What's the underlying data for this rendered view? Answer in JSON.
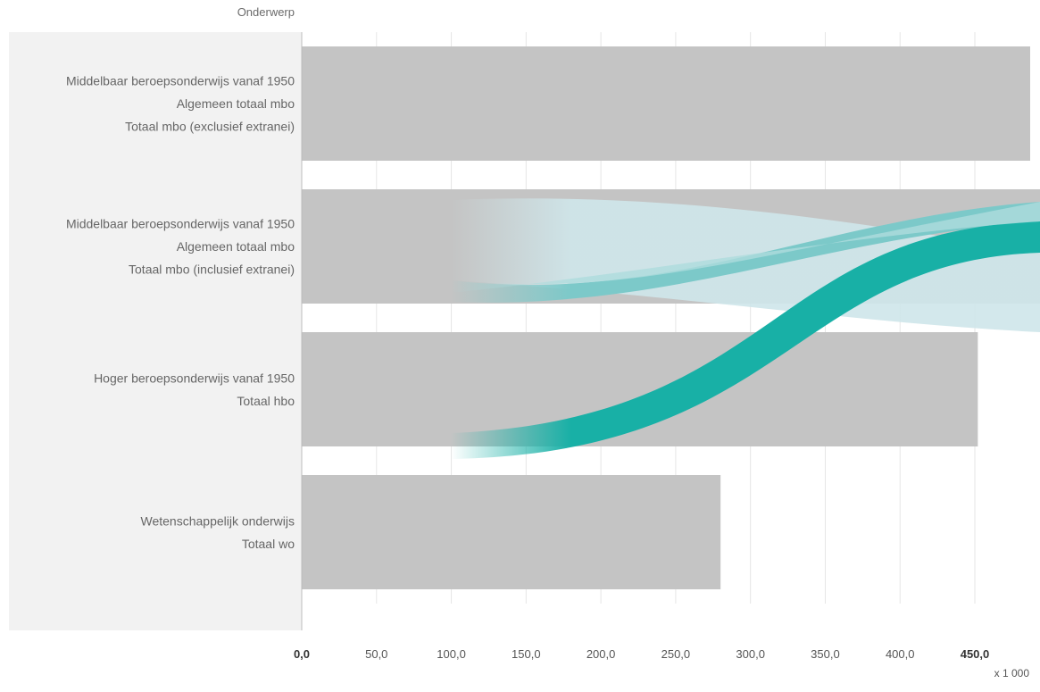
{
  "chart_data": {
    "type": "bar",
    "orientation": "horizontal",
    "category_header": "Onderwerp",
    "categories": [
      [
        "Middelbaar beroepsonderwijs vanaf 1950",
        "Algemeen totaal mbo",
        "Totaal mbo (exclusief extranei)"
      ],
      [
        "Middelbaar beroepsonderwijs vanaf 1950",
        "Algemeen totaal mbo",
        "Totaal mbo (inclusief extranei)"
      ],
      [
        "Hoger beroepsonderwijs vanaf 1950",
        "Totaal hbo"
      ],
      [
        "Wetenschappelijk onderwijs",
        "Totaal wo"
      ]
    ],
    "values": [
      487,
      496,
      452,
      280
    ],
    "xlim": [
      0,
      496
    ],
    "x_ticks": [
      "0,0",
      "50,0",
      "100,0",
      "150,0",
      "200,0",
      "250,0",
      "300,0",
      "350,0",
      "400,0",
      "450,0"
    ],
    "x_ticks_bold": [
      "0,0",
      "450,0"
    ],
    "x_unit": "x 1 000",
    "grid": true,
    "colors": {
      "bar": "#c4c4c4",
      "gridline": "#e6e6e6",
      "label_panel": "#f2f2f2",
      "ribbon_dark": "#18b0a6",
      "ribbon_mid": "#7cc9c9",
      "ribbon_light": "#bfe3e6"
    }
  }
}
